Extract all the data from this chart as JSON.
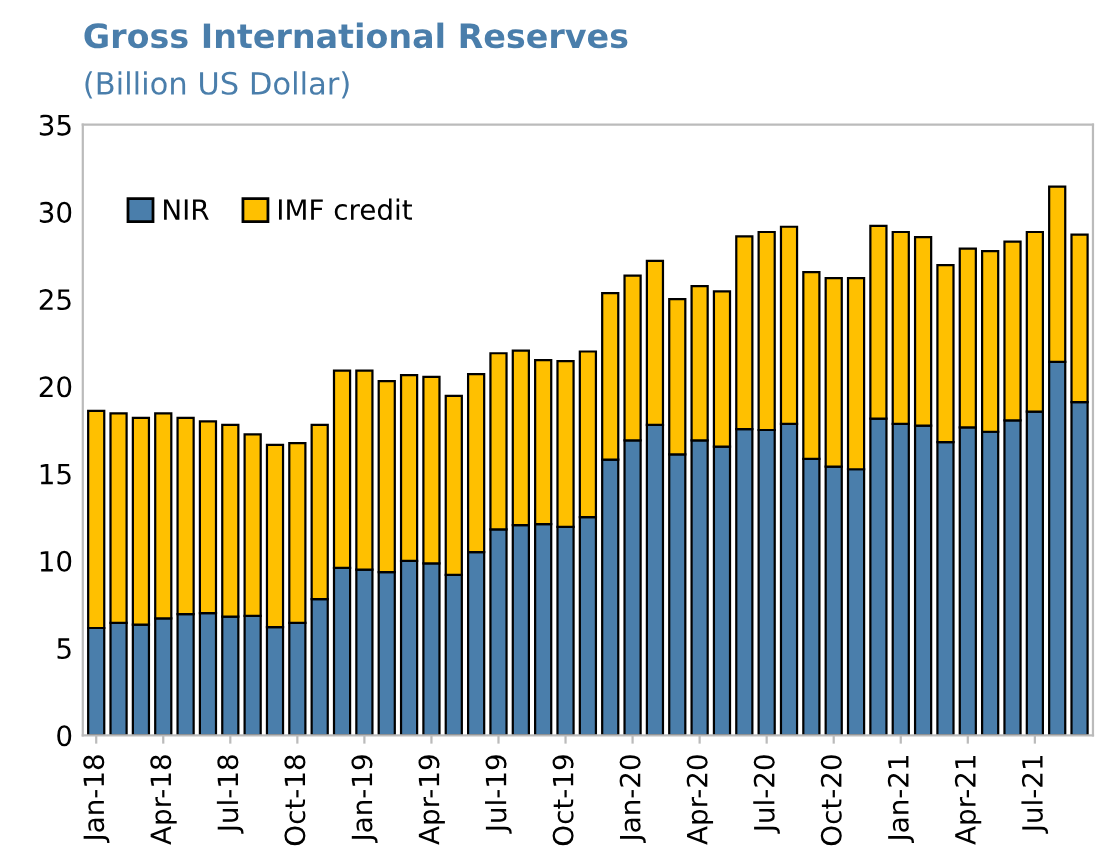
{
  "chart_data": {
    "type": "bar",
    "stacked": true,
    "title": "Gross International Reserves",
    "subtitle": "(Billion US Dollar)",
    "categories": [
      "Jan-18",
      null,
      null,
      "Apr-18",
      null,
      null,
      "Jul-18",
      null,
      null,
      "Oct-18",
      null,
      null,
      "Jan-19",
      null,
      null,
      "Apr-19",
      null,
      null,
      "Jul-19",
      null,
      null,
      "Oct-19",
      null,
      null,
      "Jan-20",
      null,
      null,
      "Apr-20",
      null,
      null,
      "Jul-20",
      null,
      null,
      "Oct-20",
      null,
      null,
      "Jan-21",
      null,
      null,
      "Apr-21",
      null,
      null,
      "Jul-21",
      null,
      null
    ],
    "series": [
      {
        "name": "NIR",
        "color": "#4a7eab",
        "values": [
          6.15,
          6.45,
          6.35,
          6.7,
          6.95,
          7.0,
          6.8,
          6.85,
          6.2,
          6.45,
          7.8,
          9.6,
          9.5,
          9.35,
          10.0,
          9.85,
          9.2,
          10.5,
          11.8,
          12.05,
          12.1,
          11.95,
          12.5,
          15.8,
          16.9,
          17.8,
          16.1,
          16.9,
          16.55,
          17.55,
          17.5,
          17.85,
          15.85,
          15.4,
          15.25,
          18.15,
          17.85,
          17.75,
          16.8,
          17.65,
          17.4,
          18.05,
          18.55,
          21.4,
          19.1
        ]
      },
      {
        "name": "IMF credit",
        "color": "#ffc000",
        "values": [
          12.45,
          12.0,
          11.85,
          11.75,
          11.25,
          11.0,
          11.0,
          10.4,
          10.45,
          10.3,
          10.0,
          11.3,
          11.4,
          10.95,
          10.65,
          10.7,
          10.25,
          10.2,
          10.1,
          10.0,
          9.4,
          9.5,
          9.5,
          9.55,
          9.45,
          9.4,
          8.9,
          8.85,
          8.9,
          11.05,
          11.35,
          11.3,
          10.7,
          10.8,
          10.95,
          11.05,
          11.0,
          10.8,
          10.15,
          10.25,
          10.35,
          10.25,
          10.3,
          10.05,
          9.6
        ]
      }
    ],
    "ylim": [
      0,
      35
    ],
    "yticks": [
      0,
      5,
      10,
      15,
      20,
      25,
      30,
      35
    ],
    "grid": false,
    "legend": "top left"
  }
}
